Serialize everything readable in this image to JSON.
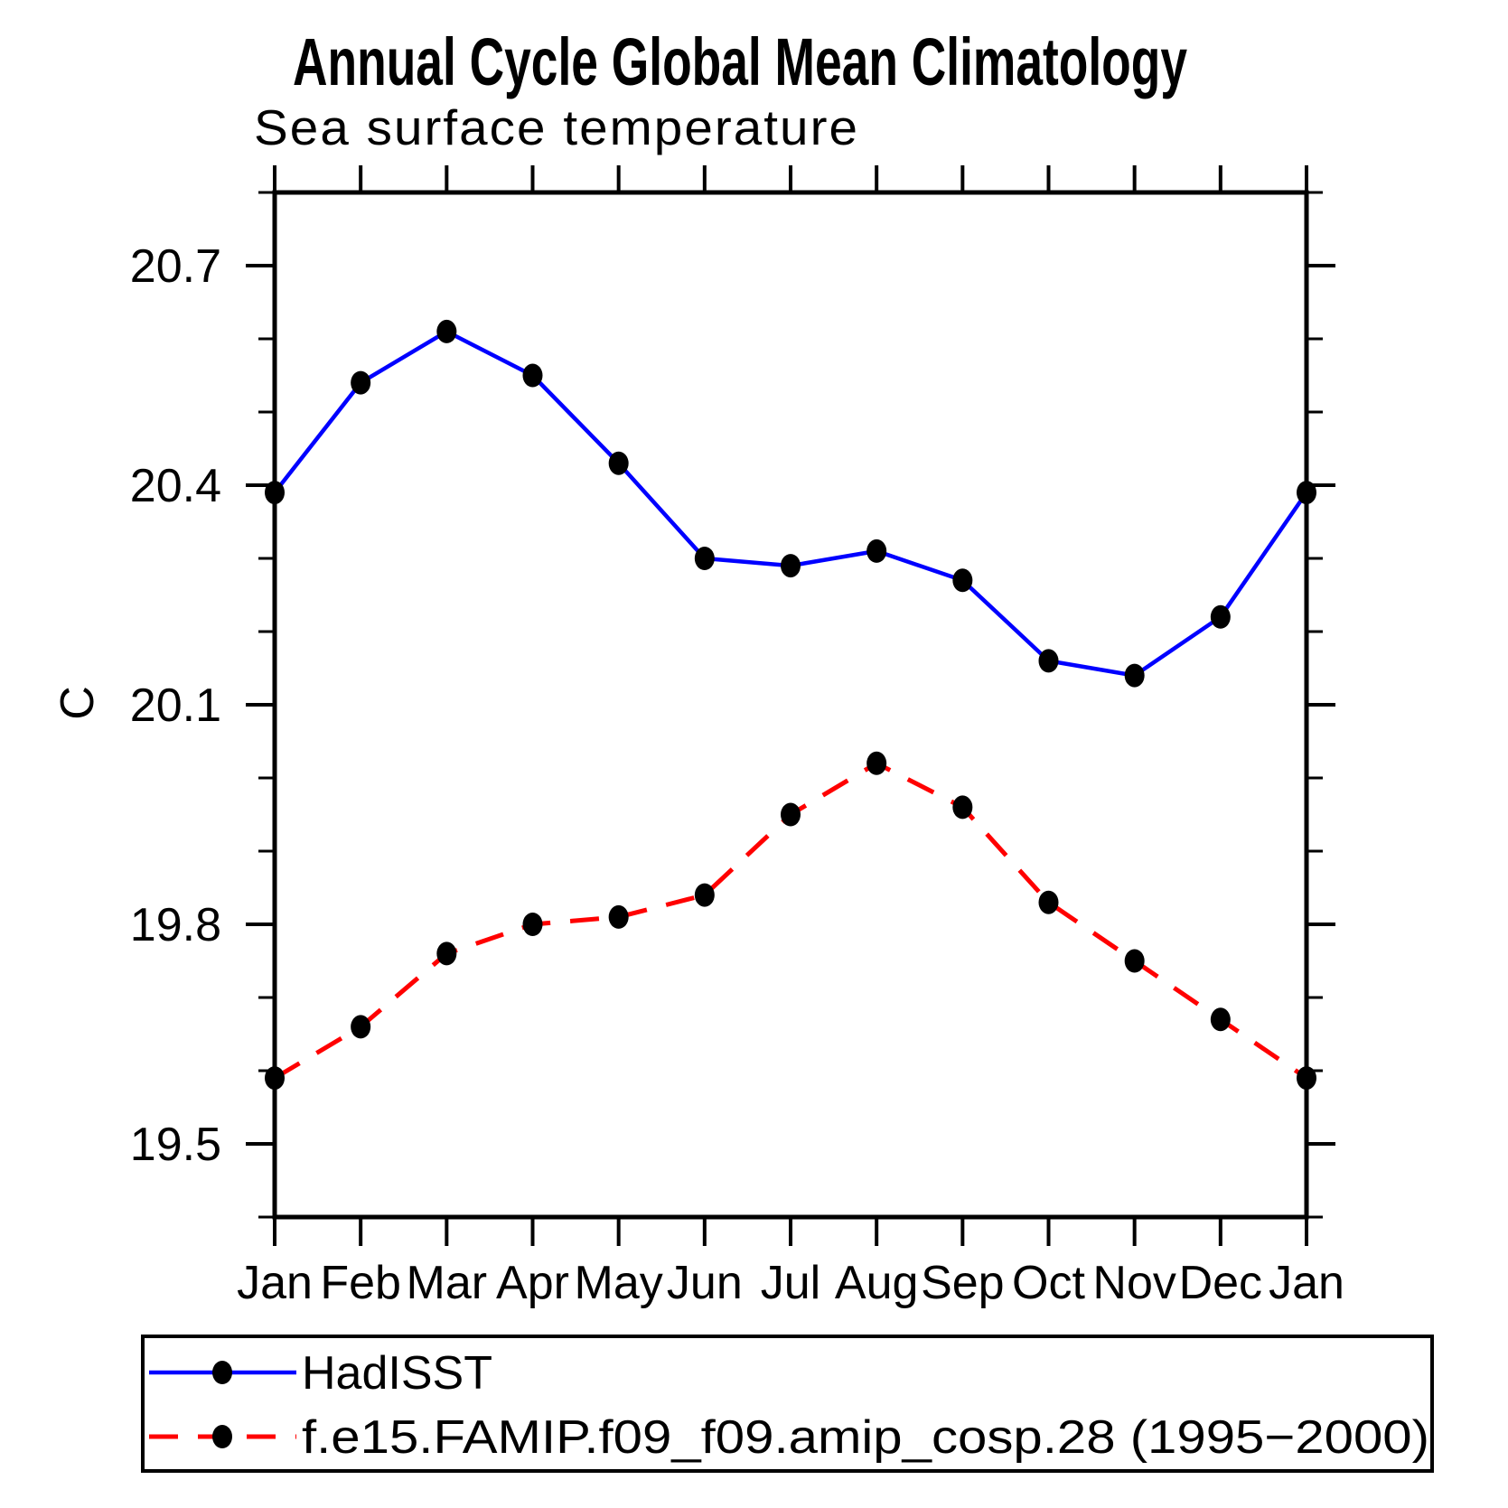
{
  "chart_data": {
    "type": "line",
    "title": "Annual Cycle Global Mean Climatology",
    "subtitle": "Sea surface temperature",
    "ylabel": "C",
    "xlabel": "",
    "categories": [
      "Jan",
      "Feb",
      "Mar",
      "Apr",
      "May",
      "Jun",
      "Jul",
      "Aug",
      "Sep",
      "Oct",
      "Nov",
      "Dec",
      "Jan"
    ],
    "series": [
      {
        "name": "HadISST",
        "color": "#0000ff",
        "line_style": "solid",
        "marker": "filled-circle",
        "marker_color": "#000000",
        "values": [
          20.39,
          20.54,
          20.61,
          20.55,
          20.43,
          20.3,
          20.29,
          20.31,
          20.27,
          20.16,
          20.14,
          20.22,
          20.39
        ]
      },
      {
        "name": "f.e15.FAMIP.f09_f09.amip_cosp.28 (1995−2000)",
        "color": "#ff0000",
        "line_style": "dashed",
        "marker": "filled-circle",
        "marker_color": "#000000",
        "values": [
          19.59,
          19.66,
          19.76,
          19.8,
          19.81,
          19.84,
          19.95,
          20.02,
          19.96,
          19.83,
          19.75,
          19.67,
          19.59
        ]
      }
    ],
    "ylim": [
      19.4,
      20.8
    ],
    "y_major_ticks": [
      19.5,
      19.8,
      20.1,
      20.4,
      20.7
    ],
    "y_major_tick_labels": [
      "19.5",
      "19.8",
      "20.1",
      "20.4",
      "20.7"
    ],
    "y_minor_step": 0.1,
    "grid": false,
    "legend_position": "bottom-left-box",
    "frame_color": "#000000"
  }
}
